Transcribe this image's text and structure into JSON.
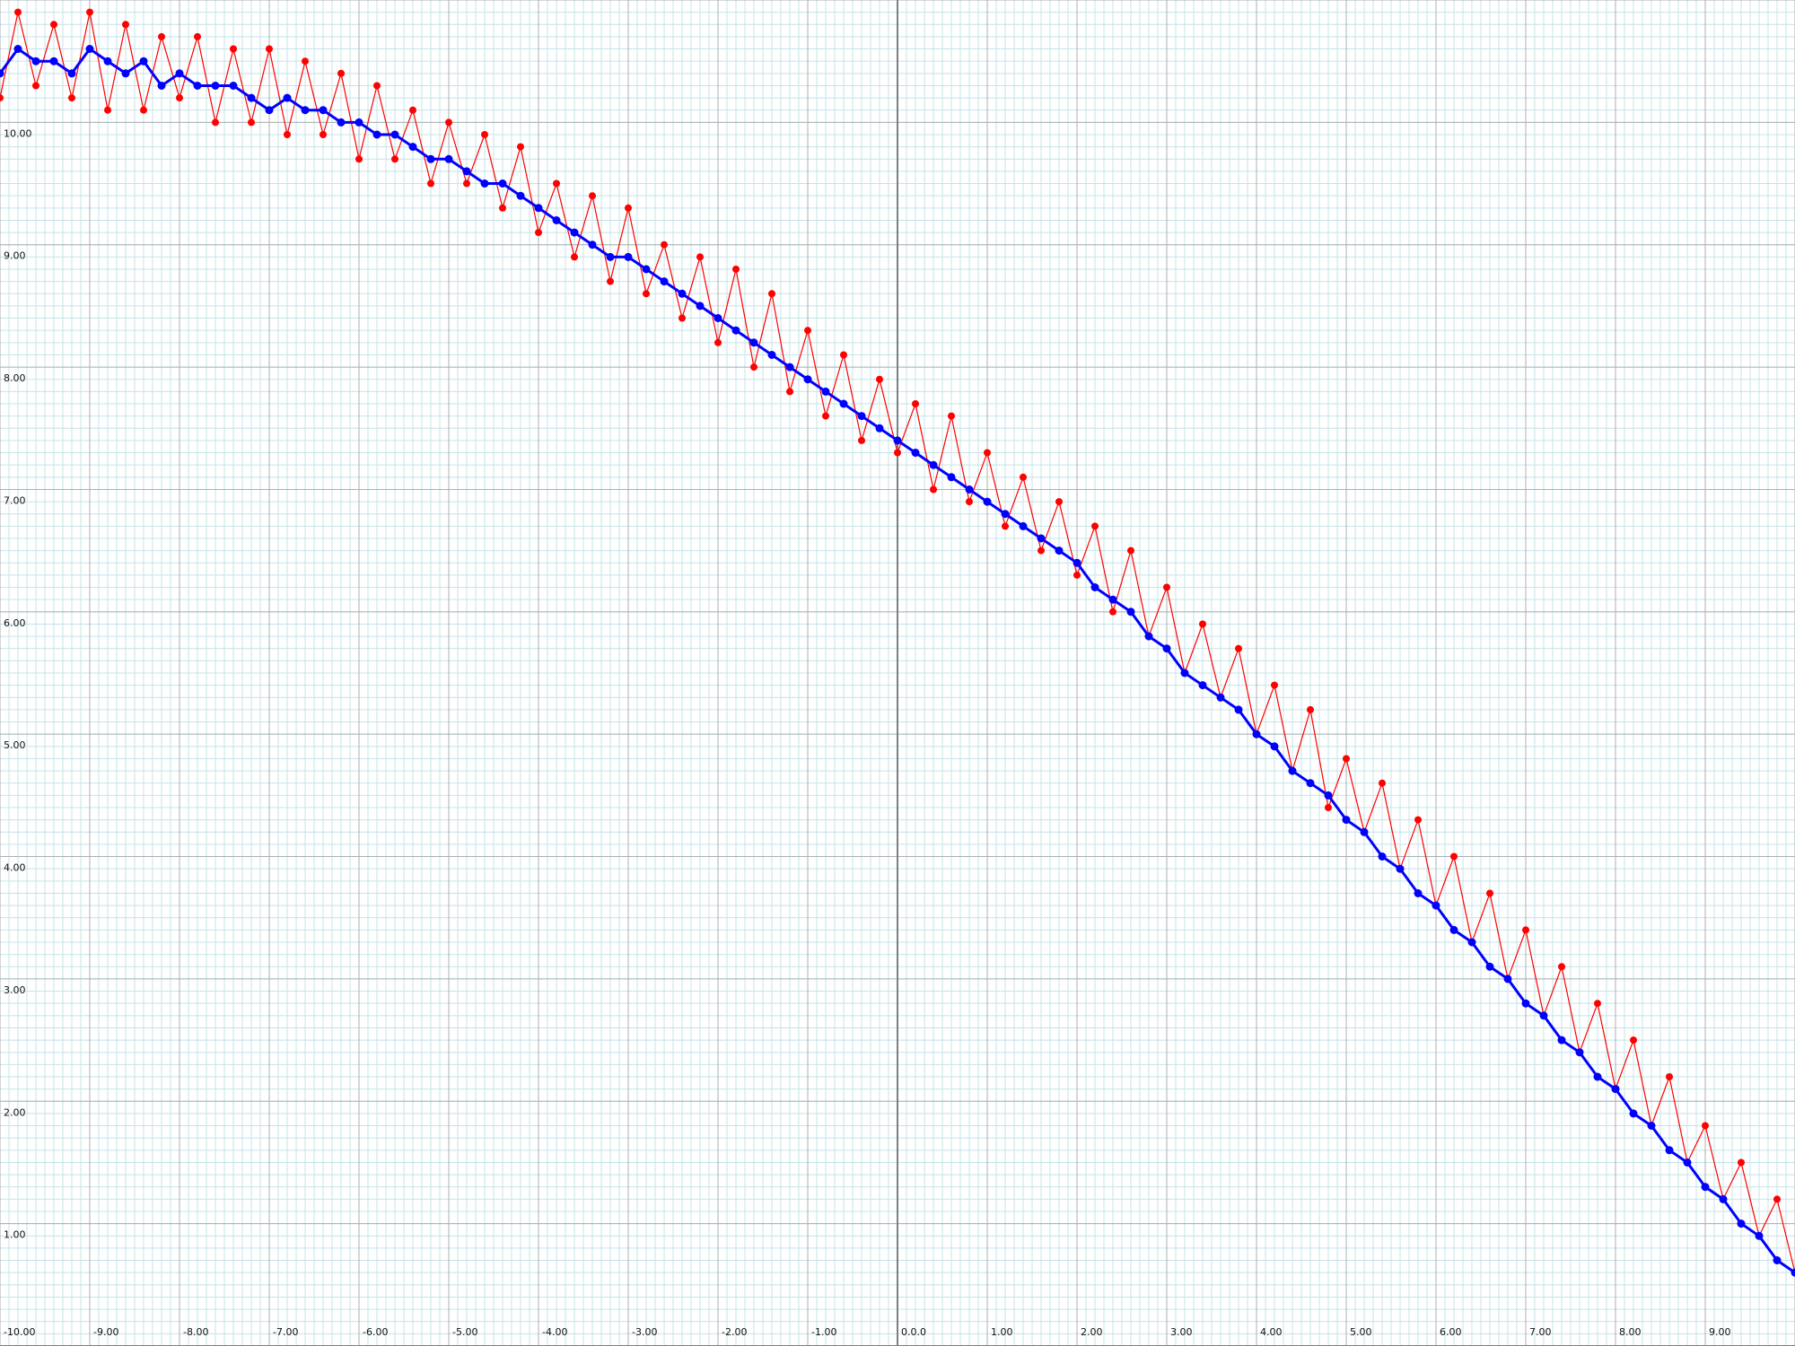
{
  "chart_data": {
    "type": "scatter",
    "title": "",
    "xlabel": "",
    "ylabel": "",
    "xlim": [
      -10.0,
      10.0
    ],
    "ylim": [
      0.0,
      11.0
    ],
    "grid": true,
    "minor_grid": true,
    "legend": "none",
    "x_ticks": [
      {
        "value": -10,
        "label": "-10.00"
      },
      {
        "value": -9,
        "label": "-9.00"
      },
      {
        "value": -8,
        "label": "-8.00"
      },
      {
        "value": -7,
        "label": "-7.00"
      },
      {
        "value": -6,
        "label": "-6.00"
      },
      {
        "value": -5,
        "label": "-5.00"
      },
      {
        "value": -4,
        "label": "-4.00"
      },
      {
        "value": -3,
        "label": "-3.00"
      },
      {
        "value": -2,
        "label": "-2.00"
      },
      {
        "value": -1,
        "label": "-1.00"
      },
      {
        "value": 0,
        "label": "0.0.0"
      },
      {
        "value": 1,
        "label": "1.00"
      },
      {
        "value": 2,
        "label": "2.00"
      },
      {
        "value": 3,
        "label": "3.00"
      },
      {
        "value": 4,
        "label": "4.00"
      },
      {
        "value": 5,
        "label": "5.00"
      },
      {
        "value": 6,
        "label": "6.00"
      },
      {
        "value": 7,
        "label": "7.00"
      },
      {
        "value": 8,
        "label": "8.00"
      },
      {
        "value": 9,
        "label": "9.00"
      }
    ],
    "y_ticks": [
      {
        "value": 1,
        "label": "1.00"
      },
      {
        "value": 2,
        "label": "2.00"
      },
      {
        "value": 3,
        "label": "3.00"
      },
      {
        "value": 4,
        "label": "4.00"
      },
      {
        "value": 5,
        "label": "5.00"
      },
      {
        "value": 6,
        "label": "6.00"
      },
      {
        "value": 7,
        "label": "7.00"
      },
      {
        "value": 8,
        "label": "8.00"
      },
      {
        "value": 9,
        "label": "9.00"
      },
      {
        "value": 10,
        "label": "10.00"
      }
    ],
    "colors": {
      "background": "#ffffff",
      "minor_grid": "#c4e4ea",
      "major_grid": "#a8b0b4",
      "axis": "#7a8084",
      "series_raw": "#ff0000",
      "series_smooth": "#0000ff"
    },
    "series": [
      {
        "key": "raw",
        "x": [
          -10.0,
          -9.8,
          -9.6,
          -9.4,
          -9.2,
          -9.0,
          -8.8,
          -8.6,
          -8.4,
          -8.2,
          -8.0,
          -7.8,
          -7.6,
          -7.4,
          -7.2,
          -7.0,
          -6.8,
          -6.6,
          -6.4,
          -6.2,
          -6.0,
          -5.8,
          -5.6,
          -5.4,
          -5.2,
          -5.0,
          -4.8,
          -4.6,
          -4.4,
          -4.2,
          -4.0,
          -3.8,
          -3.6,
          -3.4,
          -3.2,
          -3.0,
          -2.8,
          -2.6,
          -2.4,
          -2.2,
          -2.0,
          -1.8,
          -1.6,
          -1.4,
          -1.2,
          -1.0,
          -0.8,
          -0.6,
          -0.4,
          -0.2,
          0.0,
          0.2,
          0.4,
          0.6,
          0.8,
          1.0,
          1.2,
          1.4,
          1.6,
          1.8,
          2.0,
          2.2,
          2.4,
          2.6,
          2.8,
          3.0,
          3.2,
          3.4,
          3.6,
          3.8,
          4.0,
          4.2,
          4.4,
          4.6,
          4.8,
          5.0,
          5.2,
          5.4,
          5.6,
          5.8,
          6.0,
          6.2,
          6.4,
          6.6,
          6.8,
          7.0,
          7.2,
          7.4,
          7.6,
          7.8,
          8.0,
          8.2,
          8.4,
          8.6,
          8.8,
          9.0,
          9.2,
          9.4,
          9.6,
          9.8,
          10.0
        ],
        "y": [
          10.2,
          10.9,
          10.3,
          10.8,
          10.2,
          10.9,
          10.1,
          10.8,
          10.1,
          10.7,
          10.2,
          10.7,
          10.0,
          10.6,
          10.0,
          10.6,
          9.9,
          10.5,
          9.9,
          10.4,
          9.7,
          10.3,
          9.7,
          10.1,
          9.5,
          10.0,
          9.5,
          9.9,
          9.3,
          9.8,
          9.1,
          9.5,
          8.9,
          9.4,
          8.7,
          9.3,
          8.6,
          9.0,
          8.4,
          8.9,
          8.2,
          8.8,
          8.0,
          8.6,
          7.8,
          8.3,
          7.6,
          8.1,
          7.4,
          7.9,
          7.3,
          7.7,
          7.0,
          7.6,
          6.9,
          7.3,
          6.7,
          7.1,
          6.5,
          6.9,
          6.3,
          6.7,
          6.0,
          6.5,
          5.8,
          6.2,
          5.5,
          5.9,
          5.3,
          5.7,
          5.0,
          5.4,
          4.7,
          5.2,
          4.4,
          4.8,
          4.2,
          4.6,
          3.9,
          4.3,
          3.6,
          4.0,
          3.3,
          3.7,
          3.0,
          3.4,
          2.7,
          3.1,
          2.4,
          2.8,
          2.1,
          2.5,
          1.8,
          2.2,
          1.5,
          1.8,
          1.2,
          1.5,
          0.9,
          1.2,
          0.6
        ]
      },
      {
        "key": "smoothed",
        "x": [
          -10.0,
          -9.8,
          -9.6,
          -9.4,
          -9.2,
          -9.0,
          -8.8,
          -8.6,
          -8.4,
          -8.2,
          -8.0,
          -7.8,
          -7.6,
          -7.4,
          -7.2,
          -7.0,
          -6.8,
          -6.6,
          -6.4,
          -6.2,
          -6.0,
          -5.8,
          -5.6,
          -5.4,
          -5.2,
          -5.0,
          -4.8,
          -4.6,
          -4.4,
          -4.2,
          -4.0,
          -3.8,
          -3.6,
          -3.4,
          -3.2,
          -3.0,
          -2.8,
          -2.6,
          -2.4,
          -2.2,
          -2.0,
          -1.8,
          -1.6,
          -1.4,
          -1.2,
          -1.0,
          -0.8,
          -0.6,
          -0.4,
          -0.2,
          0.0,
          0.2,
          0.4,
          0.6,
          0.8,
          1.0,
          1.2,
          1.4,
          1.6,
          1.8,
          2.0,
          2.2,
          2.4,
          2.6,
          2.8,
          3.0,
          3.2,
          3.4,
          3.6,
          3.8,
          4.0,
          4.2,
          4.4,
          4.6,
          4.8,
          5.0,
          5.2,
          5.4,
          5.6,
          5.8,
          6.0,
          6.2,
          6.4,
          6.6,
          6.8,
          7.0,
          7.2,
          7.4,
          7.6,
          7.8,
          8.0,
          8.2,
          8.4,
          8.6,
          8.8,
          9.0,
          9.2,
          9.4,
          9.6,
          9.8,
          10.0
        ],
        "y": [
          10.4,
          10.6,
          10.5,
          10.5,
          10.4,
          10.6,
          10.5,
          10.4,
          10.5,
          10.3,
          10.4,
          10.3,
          10.3,
          10.3,
          10.2,
          10.1,
          10.2,
          10.1,
          10.1,
          10.0,
          10.0,
          9.9,
          9.9,
          9.8,
          9.7,
          9.7,
          9.6,
          9.5,
          9.5,
          9.4,
          9.3,
          9.2,
          9.1,
          9.0,
          8.9,
          8.9,
          8.8,
          8.7,
          8.6,
          8.5,
          8.4,
          8.3,
          8.2,
          8.1,
          8.0,
          7.9,
          7.8,
          7.7,
          7.6,
          7.5,
          7.4,
          7.3,
          7.2,
          7.1,
          7.0,
          6.9,
          6.8,
          6.7,
          6.6,
          6.5,
          6.4,
          6.2,
          6.1,
          6.0,
          5.8,
          5.7,
          5.5,
          5.4,
          5.3,
          5.2,
          5.0,
          4.9,
          4.7,
          4.6,
          4.5,
          4.3,
          4.2,
          4.0,
          3.9,
          3.7,
          3.6,
          3.4,
          3.3,
          3.1,
          3.0,
          2.8,
          2.7,
          2.5,
          2.4,
          2.2,
          2.1,
          1.9,
          1.8,
          1.6,
          1.5,
          1.3,
          1.2,
          1.0,
          0.9,
          0.7,
          0.6
        ]
      }
    ]
  }
}
